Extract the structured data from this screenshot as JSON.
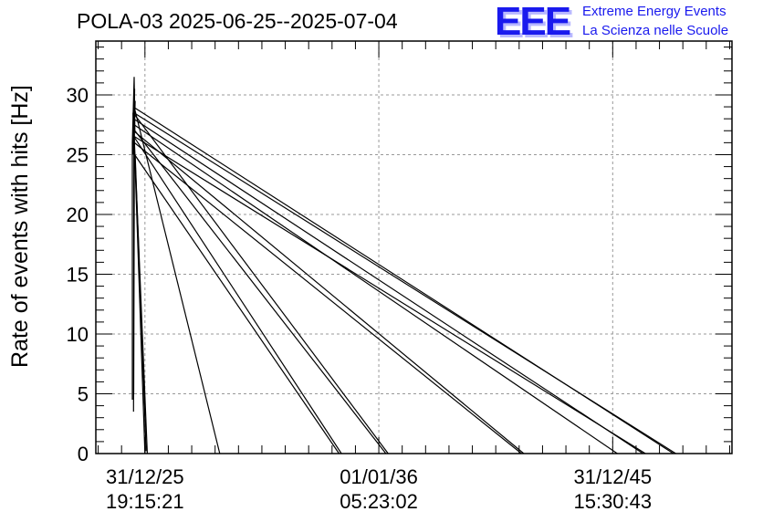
{
  "title": "POLA-03 2025-06-25--2025-07-04",
  "logo": {
    "mark": "EEE",
    "line1": "Extreme Energy Events",
    "line2": "La Scienza nelle Scuole",
    "color": "#1a1aee"
  },
  "chart_data": {
    "type": "line",
    "title": "POLA-03 2025-06-25--2025-07-04",
    "xlabel": "",
    "ylabel": "Rate of events with hits [Hz]",
    "x_ticks": [
      {
        "x": 0.0,
        "label1": "31/12/25",
        "label2": "19:15:21"
      },
      {
        "x": 1.0,
        "label1": "01/01/36",
        "label2": "05:23:02"
      },
      {
        "x": 2.0,
        "label1": "31/12/45",
        "label2": "15:30:43"
      }
    ],
    "x_note": "x in units of the tick interval (about 10 years) from the first labeled tick",
    "xlim": [
      -0.21,
      2.51
    ],
    "ylim": [
      0,
      34.5
    ],
    "y_ticks": [
      0,
      5,
      10,
      15,
      20,
      25,
      30
    ],
    "grid": true,
    "line_color": "#000000",
    "series": [
      {
        "x": [
          -0.054,
          -0.054,
          -0.046,
          -0.043,
          -0.047,
          -0.049,
          -0.045,
          -0.05,
          -0.048,
          -0.044,
          -0.046,
          -0.051,
          -0.05,
          -0.042,
          -0.045,
          -0.048
        ],
        "y": [
          4.5,
          26.0,
          31.5,
          27.0,
          29.0,
          3.5,
          28.0,
          25.0,
          27.5,
          30.5,
          26.5,
          28.5,
          25.5,
          29.5,
          27.0,
          5.0
        ]
      },
      {
        "x": [
          -0.045,
          0.01
        ],
        "y": [
          26.0,
          0.0
        ]
      },
      {
        "x": [
          -0.042,
          0.005
        ],
        "y": [
          25.0,
          0.2
        ]
      },
      {
        "x": [
          -0.048,
          0.0
        ],
        "y": [
          27.5,
          0.0
        ]
      },
      {
        "x": [
          -0.046,
          0.32
        ],
        "y": [
          29.0,
          0.0
        ]
      },
      {
        "x": [
          -0.044,
          0.83
        ],
        "y": [
          25.0,
          0.0
        ]
      },
      {
        "x": [
          -0.047,
          0.84
        ],
        "y": [
          26.5,
          0.0
        ]
      },
      {
        "x": [
          -0.05,
          1.04
        ],
        "y": [
          28.5,
          0.0
        ]
      },
      {
        "x": [
          -0.043,
          1.03
        ],
        "y": [
          27.0,
          0.0
        ]
      },
      {
        "x": [
          -0.049,
          1.62
        ],
        "y": [
          27.0,
          0.0
        ]
      },
      {
        "x": [
          -0.045,
          1.61
        ],
        "y": [
          26.0,
          0.0
        ]
      },
      {
        "x": [
          -0.046,
          2.02
        ],
        "y": [
          27.5,
          0.0
        ]
      },
      {
        "x": [
          -0.048,
          2.13
        ],
        "y": [
          28.0,
          0.0
        ]
      },
      {
        "x": [
          -0.044,
          2.14
        ],
        "y": [
          26.5,
          0.0
        ]
      },
      {
        "x": [
          -0.05,
          2.26
        ],
        "y": [
          29.0,
          0.0
        ]
      },
      {
        "x": [
          -0.047,
          2.27
        ],
        "y": [
          28.5,
          0.0
        ]
      }
    ]
  }
}
